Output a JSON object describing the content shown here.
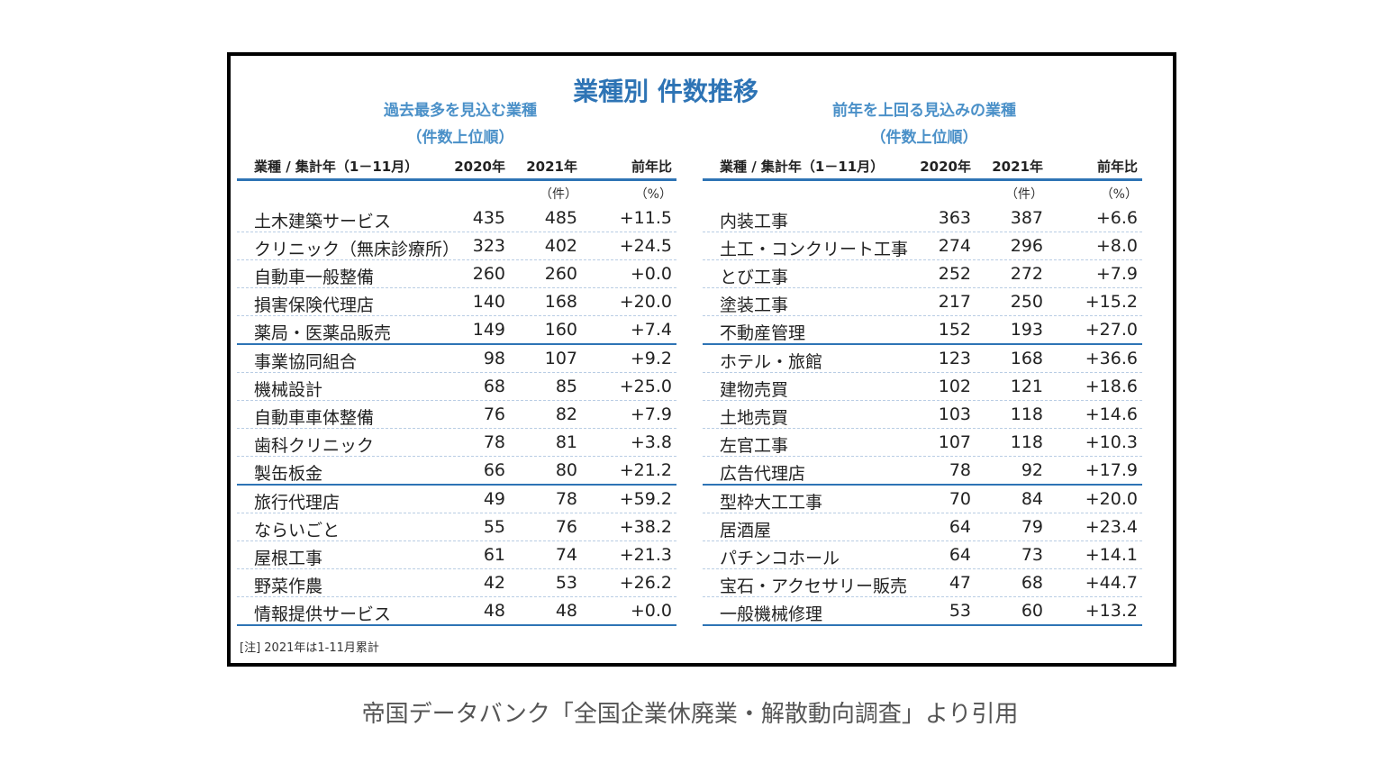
{
  "title": "業種別 件数推移",
  "left": {
    "subtitle1": "過去最多を見込む業種",
    "subtitle2": "（件数上位順）",
    "headers": {
      "name": "業種 / 集計年（1－11月）",
      "y2020": "2020年",
      "y2021": "2021年",
      "ratio": "前年比"
    },
    "units": {
      "count": "（件）",
      "pct": "（%）"
    },
    "rows": [
      [
        "土木建築サービス",
        "435",
        "485",
        "+11.5"
      ],
      [
        "クリニック（無床診療所）",
        "323",
        "402",
        "+24.5"
      ],
      [
        "自動車一般整備",
        "260",
        "260",
        "+0.0"
      ],
      [
        "損害保険代理店",
        "140",
        "168",
        "+20.0"
      ],
      [
        "薬局・医薬品販売",
        "149",
        "160",
        "+7.4"
      ],
      [
        "事業協同組合",
        "98",
        "107",
        "+9.2"
      ],
      [
        "機械設計",
        "68",
        "85",
        "+25.0"
      ],
      [
        "自動車車体整備",
        "76",
        "82",
        "+7.9"
      ],
      [
        "歯科クリニック",
        "78",
        "81",
        "+3.8"
      ],
      [
        "製缶板金",
        "66",
        "80",
        "+21.2"
      ],
      [
        "旅行代理店",
        "49",
        "78",
        "+59.2"
      ],
      [
        "ならいごと",
        "55",
        "76",
        "+38.2"
      ],
      [
        "屋根工事",
        "61",
        "74",
        "+21.3"
      ],
      [
        "野菜作農",
        "42",
        "53",
        "+26.2"
      ],
      [
        "情報提供サービス",
        "48",
        "48",
        "+0.0"
      ]
    ]
  },
  "right": {
    "subtitle1": "前年を上回る見込みの業種",
    "subtitle2": "（件数上位順）",
    "headers": {
      "name": "業種 / 集計年（1－11月）",
      "y2020": "2020年",
      "y2021": "2021年",
      "ratio": "前年比"
    },
    "units": {
      "count": "（件）",
      "pct": "（%）"
    },
    "rows": [
      [
        "内装工事",
        "363",
        "387",
        "+6.6"
      ],
      [
        "土工・コンクリート工事",
        "274",
        "296",
        "+8.0"
      ],
      [
        "とび工事",
        "252",
        "272",
        "+7.9"
      ],
      [
        "塗装工事",
        "217",
        "250",
        "+15.2"
      ],
      [
        "不動産管理",
        "152",
        "193",
        "+27.0"
      ],
      [
        "ホテル・旅館",
        "123",
        "168",
        "+36.6"
      ],
      [
        "建物売買",
        "102",
        "121",
        "+18.6"
      ],
      [
        "土地売買",
        "103",
        "118",
        "+14.6"
      ],
      [
        "左官工事",
        "107",
        "118",
        "+10.3"
      ],
      [
        "広告代理店",
        "78",
        "92",
        "+17.9"
      ],
      [
        "型枠大工工事",
        "70",
        "84",
        "+20.0"
      ],
      [
        "居酒屋",
        "64",
        "79",
        "+23.4"
      ],
      [
        "パチンコホール",
        "64",
        "73",
        "+14.1"
      ],
      [
        "宝石・アクセサリー販売",
        "47",
        "68",
        "+44.7"
      ],
      [
        "一般機械修理",
        "53",
        "60",
        "+13.2"
      ]
    ]
  },
  "note": "[注] 2021年は1-11月累計",
  "caption": "帝国データバンク「全国企業休廃業・解散動向調査」より引用",
  "colors": {
    "accent": "#2e74b5",
    "subtitle": "#4a90c8"
  }
}
